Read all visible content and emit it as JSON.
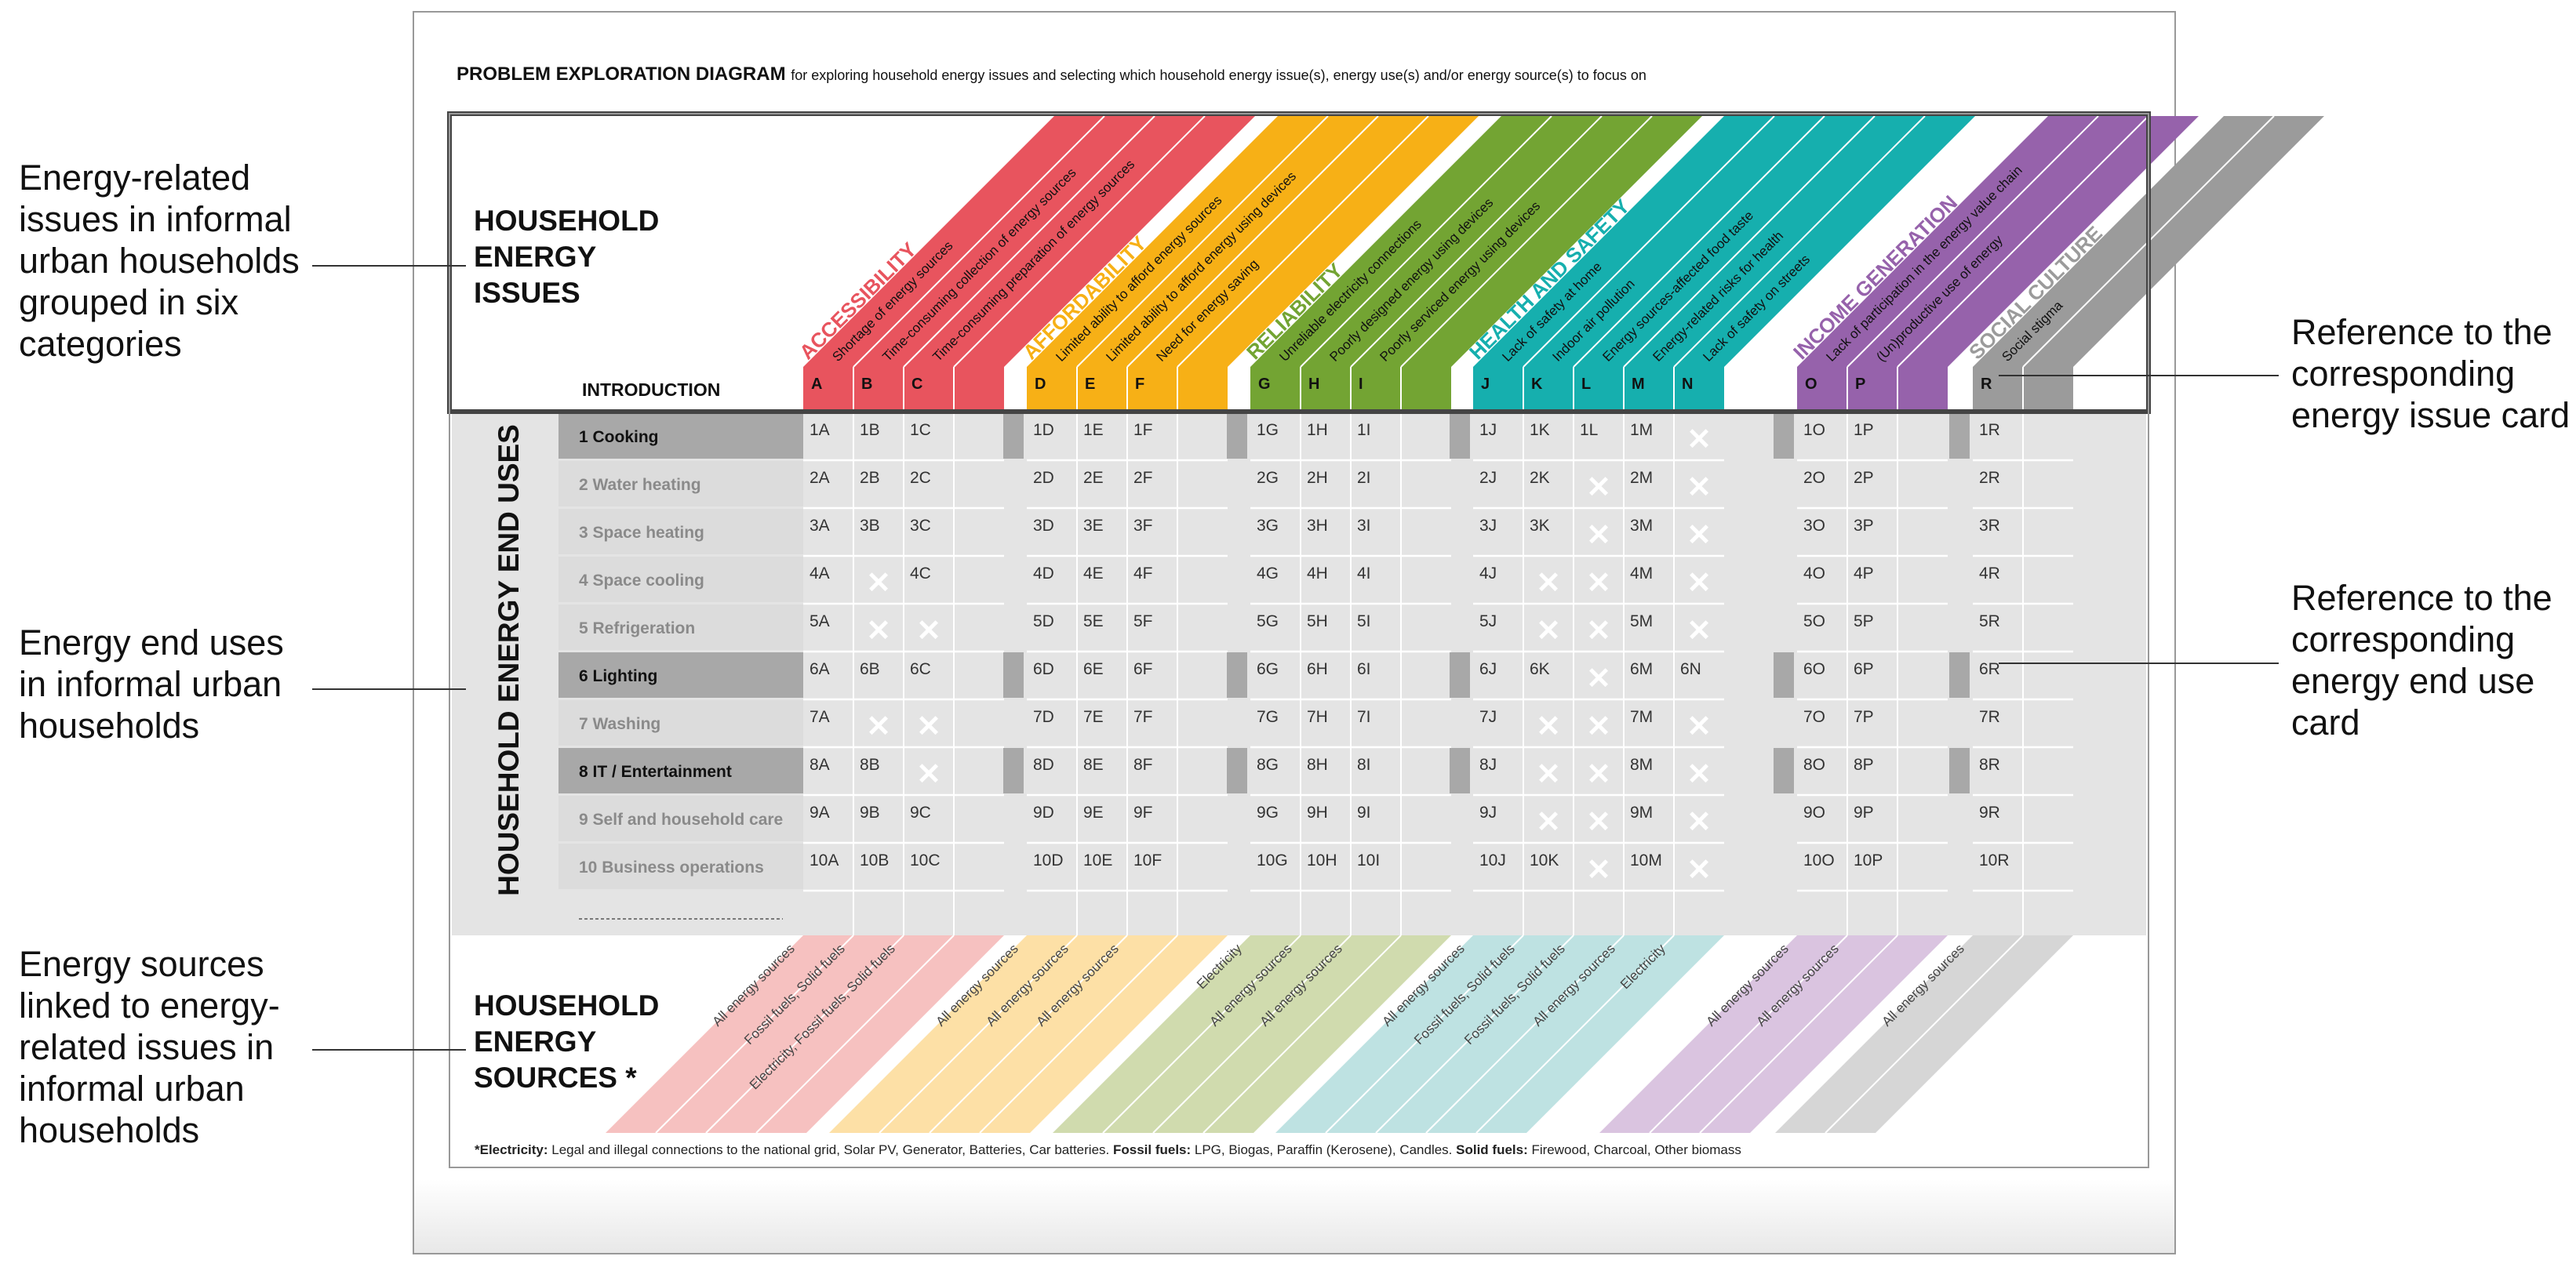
{
  "title": {
    "bold": "PROBLEM EXPLORATION DIAGRAM",
    "rest": "for exploring household energy issues and selecting which household energy issue(s), energy use(s) and/or energy source(s) to focus on"
  },
  "annotations": {
    "left": [
      [
        "Energy-related",
        "issues in informal",
        "urban households",
        "grouped in six",
        "categories"
      ],
      [
        "Energy end uses",
        "in informal urban",
        "households"
      ],
      [
        "Energy sources",
        "linked to energy-",
        "related issues in",
        "informal urban",
        "households"
      ]
    ],
    "right": [
      [
        "Reference to the",
        "corresponding",
        "energy issue card"
      ],
      [
        "Reference to the",
        "corresponding",
        "energy end use",
        "card"
      ]
    ]
  },
  "sections": {
    "issues": [
      "HOUSEHOLD",
      "ENERGY",
      "ISSUES"
    ],
    "end_uses": "HOUSEHOLD ENERGY END USES",
    "sources": [
      "HOUSEHOLD",
      "ENERGY",
      "SOURCES *"
    ],
    "introduction": "INTRODUCTION"
  },
  "colors": {
    "dark": [
      "#E8545E",
      "#F7B016",
      "#73A433",
      "#16AFAE",
      "#9662AB",
      "#9B9B9B"
    ],
    "light": [
      "#F6C1C0",
      "#FDE0A6",
      "#D0DBAE",
      "#BEE2E2",
      "#DAC4E0",
      "#D6D6D6"
    ]
  },
  "categories": [
    {
      "name": "ACCESSIBILITY",
      "letters": [
        "A",
        "B",
        "C"
      ],
      "issues": [
        "Shortage of energy sources",
        "Time-consuming collection of energy sources",
        "Time-consuming preparation of energy sources"
      ],
      "sources": [
        "All energy sources",
        "Fossil fuels, Solid fuels",
        "Electricity, Fossil fuels, Solid fuels"
      ]
    },
    {
      "name": "AFFORDABILITY",
      "letters": [
        "D",
        "E",
        "F"
      ],
      "issues": [
        "Limited ability to afford energy sources",
        "Limited ability to afford energy using devices",
        "Need for energy saving"
      ],
      "sources": [
        "All energy sources",
        "All energy sources",
        "All energy sources"
      ]
    },
    {
      "name": "RELIABILITY",
      "letters": [
        "G",
        "H",
        "I"
      ],
      "issues": [
        "Unreliable electricity connections",
        "Poorly designed energy using devices",
        "Poorly serviced energy using devices"
      ],
      "sources": [
        "Electricity",
        "All energy sources",
        "All energy sources"
      ]
    },
    {
      "name": "HEALTH AND SAFETY",
      "letters": [
        "J",
        "K",
        "L",
        "M",
        "N"
      ],
      "issues": [
        "Lack of safety at home",
        "Indoor air pollution",
        "Energy sources-affected food taste",
        "Energy-related risks for health",
        "Lack of safety on streets"
      ],
      "sources": [
        "All energy sources",
        "Fossil fuels, Solid fuels",
        "Fossil fuels, Solid fuels",
        "All energy sources",
        "Electricity"
      ]
    },
    {
      "name": "INCOME GENERATION",
      "letters": [
        "O",
        "P"
      ],
      "issues": [
        "Lack of participation in the energy value chain",
        "(Un)productive use of energy"
      ],
      "sources": [
        "All energy sources",
        "All energy sources"
      ]
    },
    {
      "name": "SOCIAL CULTURE",
      "letters": [
        "R"
      ],
      "issues": [
        "Social stigma"
      ],
      "sources": [
        "All energy sources"
      ]
    }
  ],
  "end_uses": [
    {
      "num": "1",
      "label": "1 Cooking",
      "highlight": true
    },
    {
      "num": "2",
      "label": "2 Water heating",
      "highlight": false
    },
    {
      "num": "3",
      "label": "3 Space heating",
      "highlight": false
    },
    {
      "num": "4",
      "label": "4 Space cooling",
      "highlight": false
    },
    {
      "num": "5",
      "label": "5 Refrigeration",
      "highlight": false
    },
    {
      "num": "6",
      "label": "6 Lighting",
      "highlight": true
    },
    {
      "num": "7",
      "label": "7 Washing",
      "highlight": false
    },
    {
      "num": "8",
      "label": "8 IT / Entertainment",
      "highlight": true
    },
    {
      "num": "9",
      "label": "9 Self and household care",
      "highlight": false
    },
    {
      "num": "10",
      "label": "10 Business operations",
      "highlight": false
    }
  ],
  "not_applicable": [
    "4B",
    "5B",
    "5C",
    "7B",
    "7C",
    "8C",
    "1N",
    "2L",
    "2N",
    "3L",
    "3N",
    "4K",
    "4L",
    "4N",
    "5K",
    "5L",
    "5N",
    "6L",
    "7K",
    "7L",
    "7N",
    "8K",
    "8L",
    "8N",
    "9K",
    "9L",
    "9N",
    "10L",
    "10N"
  ],
  "footnote": [
    {
      "b": "*Electricity:",
      "t": " Legal and illegal connections to the national grid, Solar PV, Generator, Batteries, Car batteries. "
    },
    {
      "b": "Fossil fuels:",
      "t": " LPG, Biogas, Paraffin (Kerosene), Candles. "
    },
    {
      "b": "Solid fuels:",
      "t": " Firewood, Charcoal, Other biomass"
    }
  ]
}
